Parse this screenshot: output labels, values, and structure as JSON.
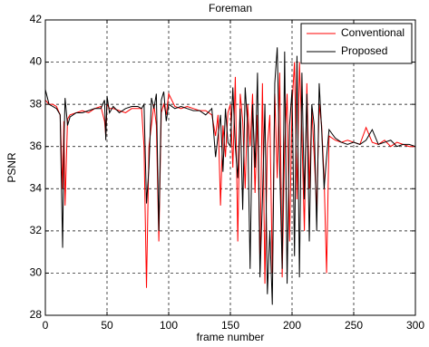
{
  "chart_data": {
    "type": "line",
    "title": "Foreman",
    "xlabel": "frame number",
    "ylabel": "PSNR",
    "x": [
      0,
      3,
      6,
      9,
      12,
      14,
      15,
      16,
      18,
      20,
      25,
      30,
      35,
      40,
      45,
      48,
      49,
      50,
      52,
      55,
      60,
      65,
      70,
      75,
      78,
      80,
      82,
      84,
      86,
      88,
      90,
      92,
      94,
      96,
      98,
      100,
      105,
      110,
      115,
      120,
      125,
      130,
      135,
      138,
      140,
      142,
      144,
      146,
      148,
      150,
      152,
      154,
      156,
      158,
      160,
      162,
      164,
      166,
      168,
      170,
      172,
      174,
      176,
      178,
      180,
      182,
      184,
      186,
      188,
      190,
      192,
      194,
      196,
      198,
      200,
      202,
      204,
      206,
      208,
      210,
      212,
      214,
      216,
      218,
      220,
      222,
      224,
      226,
      228,
      230,
      235,
      240,
      245,
      250,
      255,
      260,
      265,
      270,
      275,
      280,
      285,
      290,
      295,
      300
    ],
    "series": [
      {
        "name": "Conventional",
        "color": "#ff0000",
        "values": [
          38.2,
          38.0,
          38.0,
          37.9,
          37.5,
          34.0,
          37.2,
          33.2,
          37.3,
          37.5,
          37.6,
          37.7,
          37.6,
          37.8,
          37.9,
          37.2,
          36.5,
          38.0,
          37.8,
          37.8,
          37.7,
          37.6,
          37.8,
          37.8,
          37.8,
          36.0,
          29.3,
          36.0,
          37.0,
          38.0,
          37.0,
          31.5,
          37.6,
          38.0,
          37.5,
          38.5,
          37.9,
          37.8,
          37.9,
          37.8,
          37.7,
          37.7,
          37.5,
          36.5,
          37.5,
          33.2,
          37.0,
          35.5,
          37.6,
          38.0,
          35.0,
          39.3,
          31.5,
          38.5,
          37.2,
          34.0,
          38.0,
          36.0,
          38.5,
          33.8,
          37.5,
          30.5,
          39.0,
          29.5,
          36.0,
          37.5,
          30.0,
          38.5,
          34.5,
          39.5,
          29.8,
          36.0,
          38.5,
          31.5,
          38.0,
          40.0,
          33.5,
          40.0,
          36.5,
          32.0,
          39.0,
          34.0,
          37.8,
          35.5,
          33.0,
          38.0,
          37.0,
          34.5,
          30.0,
          36.5,
          36.3,
          36.2,
          36.3,
          36.2,
          36.1,
          36.9,
          36.2,
          36.1,
          36.3,
          36.0,
          36.2,
          36.1,
          36.0,
          36.0
        ]
      },
      {
        "name": "Proposed",
        "color": "#000000",
        "values": [
          38.7,
          38.0,
          37.9,
          37.8,
          37.5,
          31.2,
          36.0,
          38.3,
          37.0,
          37.4,
          37.6,
          37.6,
          37.7,
          37.8,
          37.8,
          38.2,
          36.3,
          38.4,
          37.6,
          37.9,
          37.6,
          37.8,
          37.9,
          37.9,
          37.8,
          38.0,
          33.3,
          35.0,
          38.3,
          37.8,
          38.5,
          32.0,
          38.2,
          38.6,
          37.2,
          38.0,
          37.8,
          37.9,
          37.8,
          37.7,
          37.7,
          37.5,
          37.8,
          35.5,
          36.5,
          37.5,
          34.8,
          37.8,
          36.2,
          36.0,
          38.8,
          36.0,
          34.5,
          37.8,
          33.0,
          38.8,
          37.0,
          30.2,
          38.0,
          35.0,
          39.5,
          29.8,
          33.5,
          38.0,
          29.0,
          32.0,
          28.5,
          39.0,
          40.7,
          35.0,
          30.2,
          40.5,
          29.5,
          37.0,
          38.7,
          30.8,
          40.3,
          29.8,
          39.5,
          33.5,
          38.5,
          31.5,
          38.0,
          37.0,
          32.0,
          39.0,
          36.8,
          34.0,
          35.5,
          36.8,
          36.4,
          36.2,
          36.1,
          36.2,
          36.1,
          36.3,
          36.8,
          36.1,
          36.2,
          36.3,
          36.0,
          36.1,
          36.1,
          36.0
        ]
      }
    ],
    "xlim": [
      0,
      300
    ],
    "xticks": [
      0,
      50,
      100,
      150,
      200,
      250,
      300
    ],
    "ylim": [
      28,
      42
    ],
    "yticks": [
      28,
      30,
      32,
      34,
      36,
      38,
      40,
      42
    ],
    "grid": true,
    "legend": "top-right"
  }
}
